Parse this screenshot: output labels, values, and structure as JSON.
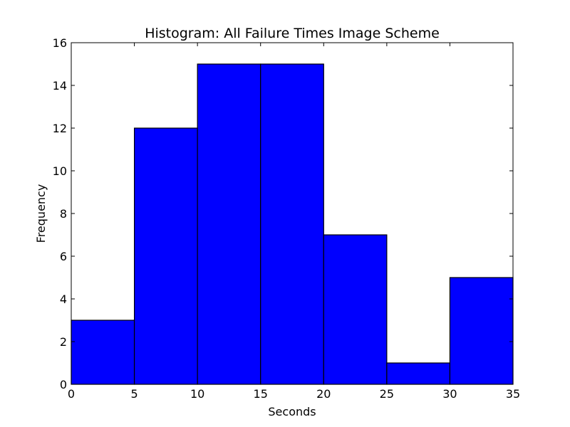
{
  "chart_data": {
    "type": "bar",
    "title": "Histogram: All Failure Times Image Scheme",
    "xlabel": "Seconds",
    "ylabel": "Frequency",
    "bins": [
      {
        "start": 0,
        "end": 5,
        "value": 3
      },
      {
        "start": 5,
        "end": 10,
        "value": 12
      },
      {
        "start": 10,
        "end": 15,
        "value": 15
      },
      {
        "start": 15,
        "end": 20,
        "value": 15
      },
      {
        "start": 20,
        "end": 25,
        "value": 7
      },
      {
        "start": 25,
        "end": 30,
        "value": 1
      },
      {
        "start": 30,
        "end": 35,
        "value": 5
      }
    ],
    "xlim": [
      0,
      35
    ],
    "ylim": [
      0,
      16
    ],
    "xticks": [
      0,
      5,
      10,
      15,
      20,
      25,
      30,
      35
    ],
    "yticks": [
      0,
      2,
      4,
      6,
      8,
      10,
      12,
      14,
      16
    ],
    "grid": false,
    "legend": false,
    "colors": {
      "bar_fill": "#0000ff",
      "bar_edge": "#000000",
      "axes": "#000000",
      "background": "#ffffff"
    }
  }
}
